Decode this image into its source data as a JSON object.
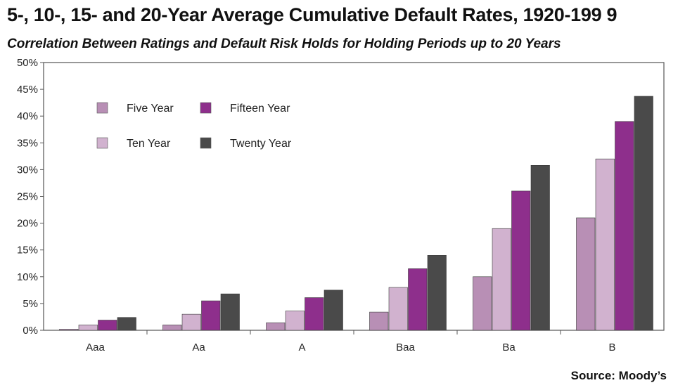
{
  "chart_data": {
    "type": "bar",
    "title": "5-, 10-, 15- and 20-Year Average Cumulative Default Rates, 1920-199 9",
    "subtitle": "Correlation Between Ratings and Default Risk Holds for Holding Periods up to 20 Years",
    "source": "Source: Moody’s",
    "categories": [
      "Aaa",
      "Aa",
      "A",
      "Baa",
      "Ba",
      "B"
    ],
    "series": [
      {
        "name": "Five Year",
        "color": "#b88fb5",
        "values": [
          0.2,
          1.0,
          1.4,
          3.4,
          10.0,
          21.0
        ]
      },
      {
        "name": "Ten Year",
        "color": "#d1b2cf",
        "values": [
          1.0,
          3.0,
          3.6,
          8.0,
          19.0,
          32.0
        ]
      },
      {
        "name": "Fifteen Year",
        "color": "#8e2f8c",
        "values": [
          1.9,
          5.5,
          6.1,
          11.5,
          26.0,
          39.0
        ]
      },
      {
        "name": "Twenty Year",
        "color": "#4a4a4a",
        "values": [
          2.4,
          6.8,
          7.5,
          14.0,
          30.8,
          43.7
        ]
      }
    ],
    "ylim": [
      0,
      50
    ],
    "yticks": [
      "0%",
      "5%",
      "10%",
      "15%",
      "20%",
      "25%",
      "30%",
      "35%",
      "40%",
      "45%",
      "50%"
    ],
    "legend_order": [
      "Five Year",
      "Fifteen Year",
      "Ten Year",
      "Twenty Year"
    ],
    "legend_position": "top-left",
    "grid": false
  }
}
